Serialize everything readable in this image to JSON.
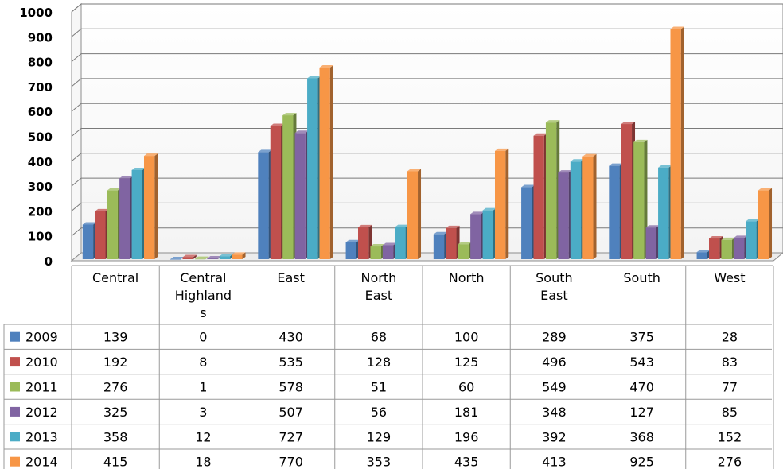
{
  "chart_data": {
    "type": "bar",
    "title": "",
    "xlabel": "",
    "ylabel": "",
    "ylim": [
      0,
      1000
    ],
    "yticks": [
      0,
      100,
      200,
      300,
      400,
      500,
      600,
      700,
      800,
      900,
      1000
    ],
    "grid": true,
    "legend": "data-table-left",
    "categories": [
      "Central",
      "Central Highlands",
      "East",
      "North East",
      "North",
      "South East",
      "South",
      "West"
    ],
    "category_label_lines": [
      [
        "Central"
      ],
      [
        "Central",
        "Highland",
        "s"
      ],
      [
        "East"
      ],
      [
        "North",
        "East"
      ],
      [
        "North"
      ],
      [
        "South",
        "East"
      ],
      [
        "South"
      ],
      [
        "West"
      ]
    ],
    "series": [
      {
        "name": "2009",
        "color": "#4f81bd",
        "values": [
          139,
          0,
          430,
          68,
          100,
          289,
          375,
          28
        ]
      },
      {
        "name": "2010",
        "color": "#c0504d",
        "values": [
          192,
          8,
          535,
          128,
          125,
          496,
          543,
          83
        ]
      },
      {
        "name": "2011",
        "color": "#9bbb59",
        "values": [
          276,
          1,
          578,
          51,
          60,
          549,
          470,
          77
        ]
      },
      {
        "name": "2012",
        "color": "#8064a2",
        "values": [
          325,
          3,
          507,
          56,
          181,
          348,
          127,
          85
        ]
      },
      {
        "name": "2013",
        "color": "#4bacc6",
        "values": [
          358,
          12,
          727,
          129,
          196,
          392,
          368,
          152
        ]
      },
      {
        "name": "2014",
        "color": "#f79646",
        "values": [
          415,
          18,
          770,
          353,
          435,
          413,
          925,
          276
        ]
      }
    ]
  }
}
